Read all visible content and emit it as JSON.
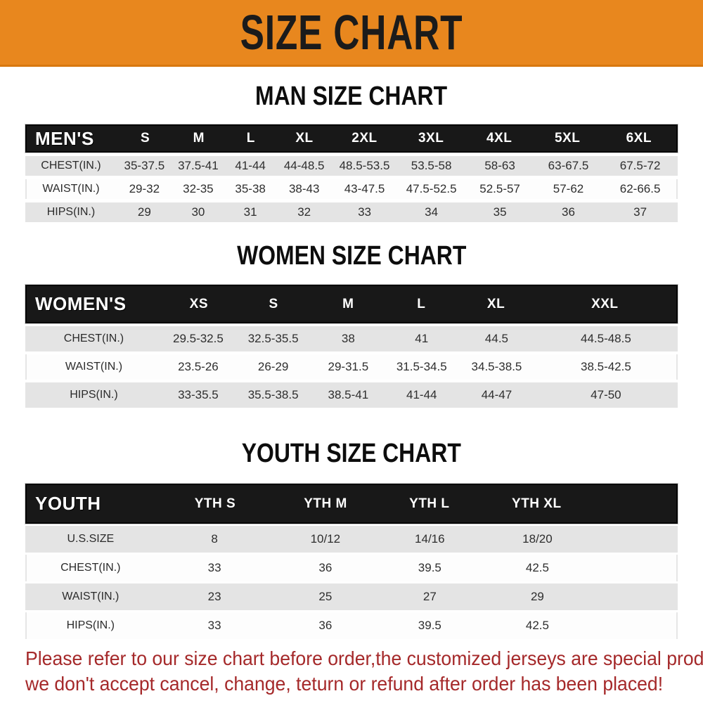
{
  "banner": {
    "title": "SIZE CHART",
    "bg_color": "#E8871E",
    "text_color": "#1b1b1b"
  },
  "sections": [
    {
      "heading": "MAN SIZE CHART",
      "table": {
        "header": [
          "MEN'S",
          "S",
          "M",
          "L",
          "XL",
          "2XL",
          "3XL",
          "4XL",
          "5XL",
          "6XL"
        ],
        "rows": [
          [
            "CHEST(IN.)",
            "35-37.5",
            "37.5-41",
            "41-44",
            "44-48.5",
            "48.5-53.5",
            "53.5-58",
            "58-63",
            "63-67.5",
            "67.5-72"
          ],
          [
            "WAIST(IN.)",
            "29-32",
            "32-35",
            "35-38",
            "38-43",
            "43-47.5",
            "47.5-52.5",
            "52.5-57",
            "57-62",
            "62-66.5"
          ],
          [
            "HIPS(IN.)",
            "29",
            "30",
            "31",
            "32",
            "33",
            "34",
            "35",
            "36",
            "37"
          ]
        ]
      }
    },
    {
      "heading": "WOMEN SIZE CHART",
      "table": {
        "header": [
          "WOMEN'S",
          "XS",
          "S",
          "M",
          "L",
          "XL",
          "XXL"
        ],
        "rows": [
          [
            "CHEST(IN.)",
            "29.5-32.5",
            "32.5-35.5",
            "38",
            "41",
            "44.5",
            "44.5-48.5"
          ],
          [
            "WAIST(IN.)",
            "23.5-26",
            "26-29",
            "29-31.5",
            "31.5-34.5",
            "34.5-38.5",
            "38.5-42.5"
          ],
          [
            "HIPS(IN.)",
            "33-35.5",
            "35.5-38.5",
            "38.5-41",
            "41-44",
            "44-47",
            "47-50"
          ]
        ]
      }
    },
    {
      "heading": "YOUTH SIZE CHART",
      "table": {
        "header": [
          "YOUTH",
          "YTH S",
          "YTH M",
          "YTH L",
          "YTH XL"
        ],
        "rows": [
          [
            "U.S.SIZE",
            "8",
            "10/12",
            "14/16",
            "18/20"
          ],
          [
            "CHEST(IN.)",
            "33",
            "36",
            "39.5",
            "42.5"
          ],
          [
            "WAIST(IN.)",
            "23",
            "25",
            "27",
            "29"
          ],
          [
            "HIPS(IN.)",
            "33",
            "36",
            "39.5",
            "42.5"
          ]
        ]
      }
    }
  ],
  "disclaimer": {
    "line1": "Please refer to our size chart before order,the customized jerseys are special products,",
    "line2": "we don't accept cancel, change, teturn or refund after order has been placed!",
    "color": "#A5292A"
  }
}
